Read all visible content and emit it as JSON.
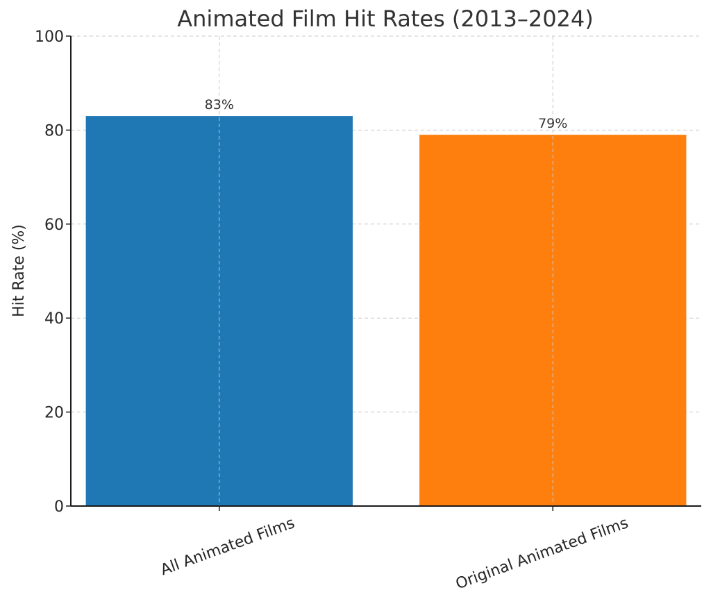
{
  "chart_data": {
    "type": "bar",
    "title": "Animated Film Hit Rates (2013–2024)",
    "xlabel": "",
    "ylabel": "Hit Rate (%)",
    "categories": [
      "All Animated Films",
      "Original Animated Films"
    ],
    "values": [
      83,
      79
    ],
    "value_labels": [
      "83%",
      "79%"
    ],
    "bar_colors": [
      "#1f77b4",
      "#ff7f0e"
    ],
    "ylim": [
      0,
      100
    ],
    "yticks": [
      0,
      20,
      40,
      60,
      80,
      100
    ],
    "grid": true
  }
}
